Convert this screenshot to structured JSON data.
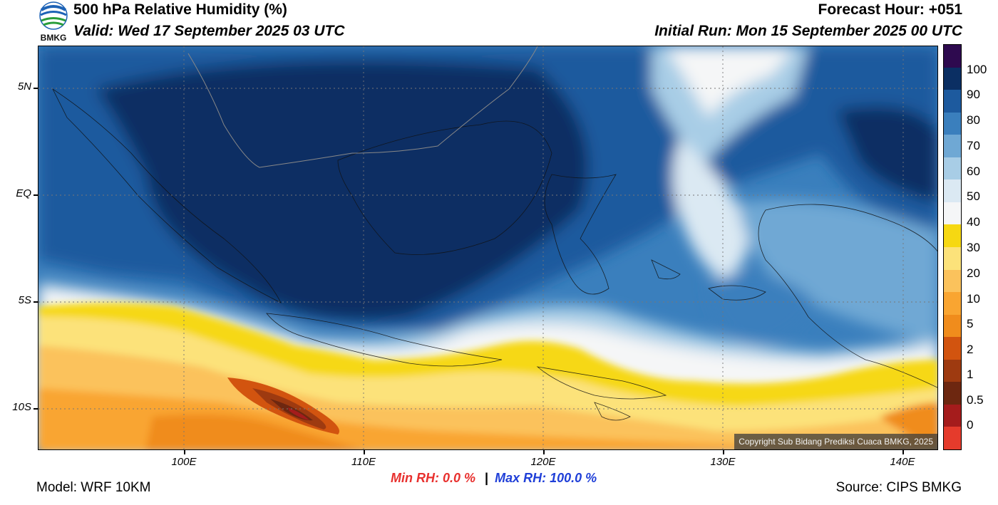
{
  "header": {
    "title": "500 hPa Relative Humidity (%)",
    "valid": "Valid: Wed 17 September 2025 03 UTC",
    "forecast_hour": "Forecast Hour: +051",
    "initial_run": "Initial Run: Mon 15 September 2025 00 UTC",
    "logo_text": "BMKG"
  },
  "map": {
    "lat_labels": [
      "5N",
      "EQ",
      "5S",
      "10S"
    ],
    "lon_labels": [
      "100E",
      "110E",
      "120E",
      "130E",
      "140E"
    ],
    "copyright": "Copyright Sub Bidang Prediksi Cuaca BMKG, 2025"
  },
  "colorbar": {
    "labels": [
      "100",
      "90",
      "80",
      "70",
      "60",
      "50",
      "40",
      "30",
      "20",
      "10",
      "5",
      "2",
      "1",
      "0.5",
      "0"
    ],
    "colors": [
      "#2e0a4f",
      "#0b2f63",
      "#1d5a9e",
      "#3a7fbd",
      "#6fa8d4",
      "#a8cde6",
      "#dbe9f3",
      "#f5f6f7",
      "#f6d812",
      "#fce27a",
      "#fbc25c",
      "#f9a531",
      "#f08c1c",
      "#d2540f",
      "#9e3a10",
      "#6d2710",
      "#a51c1c",
      "#e53b2c"
    ]
  },
  "stats": {
    "min_label": "Min RH:   0.0 %",
    "separator": "|",
    "max_label": "Max RH: 100.0 %"
  },
  "footer": {
    "model": "Model: WRF 10KM",
    "source": "Source: CIPS BMKG"
  },
  "colors": {
    "min_text": "#e8302e",
    "max_text": "#1f3fd8"
  }
}
